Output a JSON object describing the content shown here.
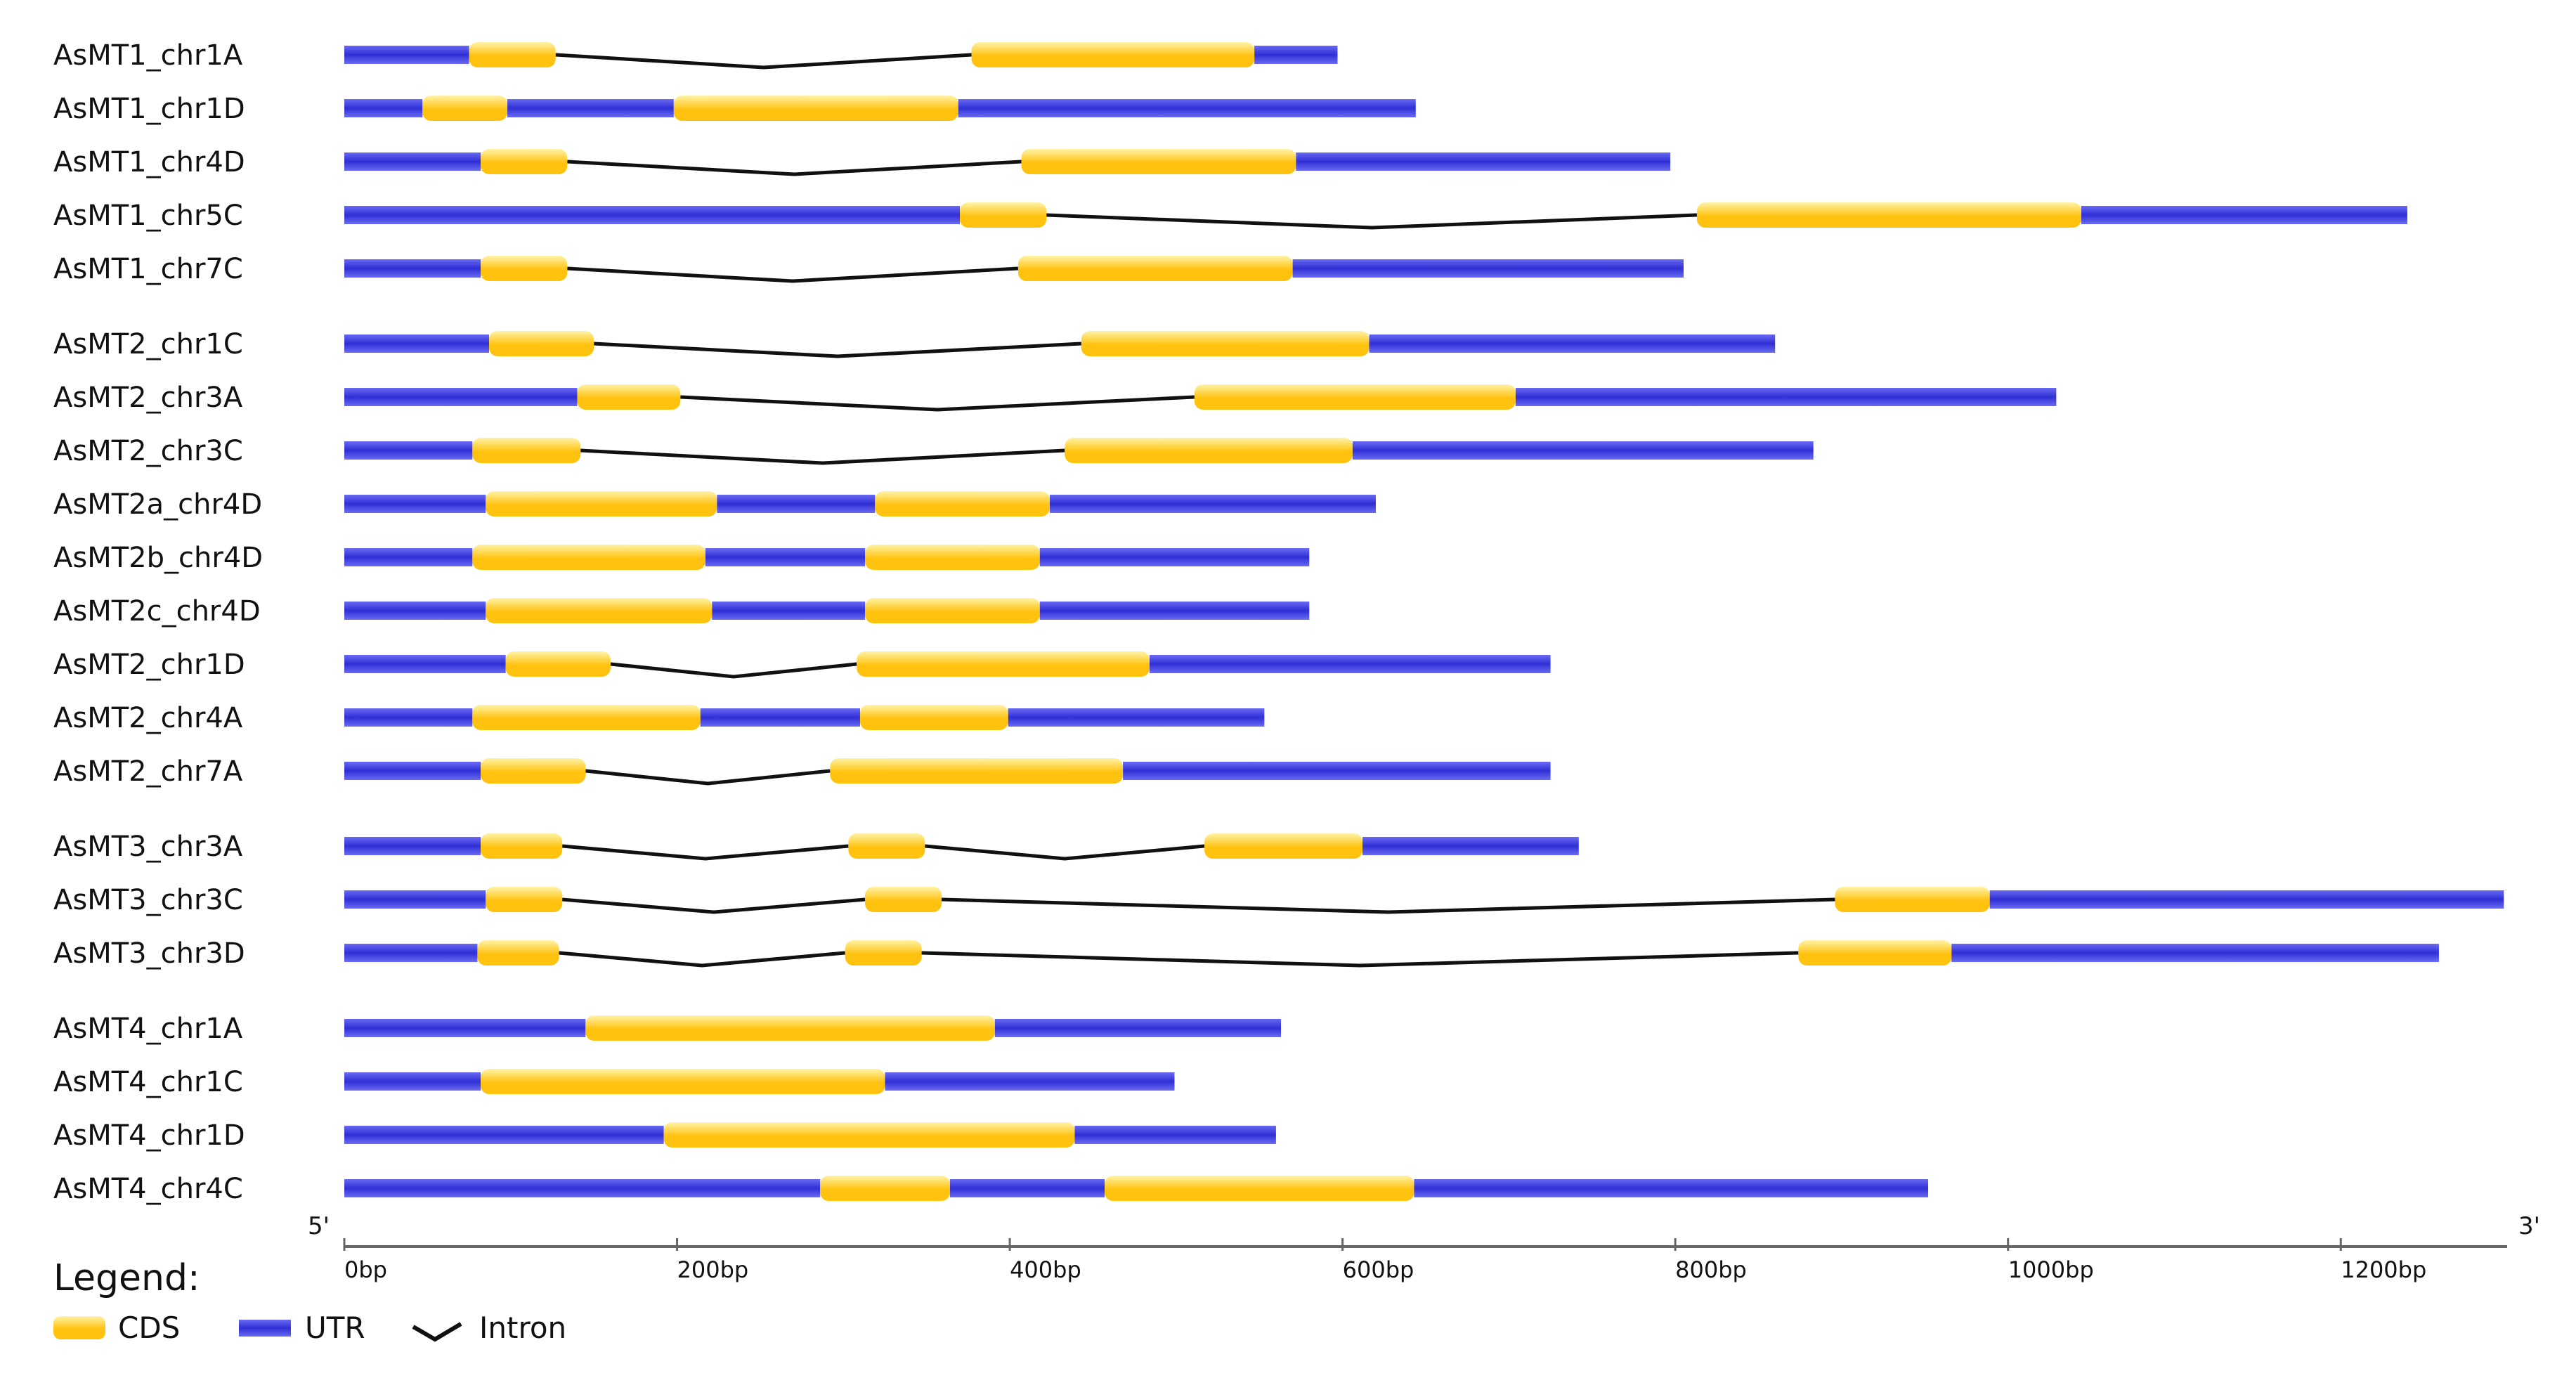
{
  "chart_data": {
    "type": "gene-structure",
    "axis": {
      "min": 0,
      "max": 1300,
      "tick_values": [
        0,
        200,
        400,
        600,
        800,
        1000,
        1200
      ],
      "tick_labels": [
        "0bp",
        "200bp",
        "400bp",
        "600bp",
        "800bp",
        "1000bp",
        "1200bp"
      ],
      "start_label": "5'",
      "end_label": "3'"
    },
    "legend": {
      "title": "Legend:",
      "cds": "CDS",
      "utr": "UTR",
      "intron": "Intron"
    },
    "colors": {
      "cds": "#FFC20E",
      "cds_light": "#FFF3A8",
      "utr": "#2F2FD6",
      "utr_light": "#6A6AF2",
      "intron": "#111111"
    },
    "genes": [
      {
        "name": "AsMT1_chr1A",
        "group": 1,
        "length": 597,
        "cds": [
          [
            75,
            127
          ],
          [
            377,
            547
          ]
        ]
      },
      {
        "name": "AsMT1_chr1D",
        "group": 1,
        "length": 644,
        "cds": [
          [
            47,
            98
          ],
          [
            198,
            369
          ]
        ]
      },
      {
        "name": "AsMT1_chr4D",
        "group": 1,
        "length": 797,
        "cds": [
          [
            82,
            134
          ],
          [
            407,
            572
          ]
        ]
      },
      {
        "name": "AsMT1_chr5C",
        "group": 1,
        "length": 1240,
        "cds": [
          [
            370,
            422
          ],
          [
            813,
            1044
          ]
        ]
      },
      {
        "name": "AsMT1_chr7C",
        "group": 1,
        "length": 805,
        "cds": [
          [
            82,
            134
          ],
          [
            405,
            570
          ]
        ]
      },
      {
        "name": "AsMT2_chr1C",
        "group": 2,
        "length": 860,
        "cds": [
          [
            87,
            150
          ],
          [
            443,
            616
          ]
        ]
      },
      {
        "name": "AsMT2_chr3A",
        "group": 2,
        "length": 1029,
        "cds": [
          [
            140,
            202
          ],
          [
            511,
            704
          ]
        ]
      },
      {
        "name": "AsMT2_chr3C",
        "group": 2,
        "length": 883,
        "cds": [
          [
            77,
            142
          ],
          [
            433,
            606
          ]
        ]
      },
      {
        "name": "AsMT2a_chr4D",
        "group": 2,
        "length": 620,
        "cds": [
          [
            85,
            224
          ],
          [
            319,
            424
          ]
        ]
      },
      {
        "name": "AsMT2b_chr4D",
        "group": 2,
        "length": 580,
        "cds": [
          [
            77,
            217
          ],
          [
            313,
            418
          ]
        ]
      },
      {
        "name": "AsMT2c_chr4D",
        "group": 2,
        "length": 580,
        "cds": [
          [
            85,
            221
          ],
          [
            313,
            418
          ]
        ]
      },
      {
        "name": "AsMT2_chr1D",
        "group": 2,
        "length": 725,
        "cds": [
          [
            97,
            160
          ],
          [
            308,
            484
          ]
        ]
      },
      {
        "name": "AsMT2_chr4A",
        "group": 2,
        "length": 553,
        "cds": [
          [
            77,
            214
          ],
          [
            310,
            399
          ]
        ]
      },
      {
        "name": "AsMT2_chr7A",
        "group": 2,
        "length": 725,
        "cds": [
          [
            82,
            145
          ],
          [
            292,
            468
          ]
        ]
      },
      {
        "name": "AsMT3_chr3A",
        "group": 3,
        "length": 742,
        "cds": [
          [
            82,
            131
          ],
          [
            303,
            349
          ],
          [
            517,
            612
          ]
        ]
      },
      {
        "name": "AsMT3_chr3C",
        "group": 3,
        "length": 1298,
        "cds": [
          [
            85,
            131
          ],
          [
            313,
            359
          ],
          [
            896,
            989
          ]
        ]
      },
      {
        "name": "AsMT3_chr3D",
        "group": 3,
        "length": 1259,
        "cds": [
          [
            80,
            129
          ],
          [
            301,
            347
          ],
          [
            874,
            966
          ]
        ]
      },
      {
        "name": "AsMT4_chr1A",
        "group": 4,
        "length": 563,
        "cds": [
          [
            145,
            391
          ]
        ]
      },
      {
        "name": "AsMT4_chr1C",
        "group": 4,
        "length": 499,
        "cds": [
          [
            82,
            325
          ]
        ]
      },
      {
        "name": "AsMT4_chr1D",
        "group": 4,
        "length": 560,
        "cds": [
          [
            192,
            439
          ]
        ]
      },
      {
        "name": "AsMT4_chr4C",
        "group": 4,
        "length": 952,
        "cds": [
          [
            286,
            364
          ],
          [
            457,
            643
          ]
        ]
      }
    ]
  }
}
